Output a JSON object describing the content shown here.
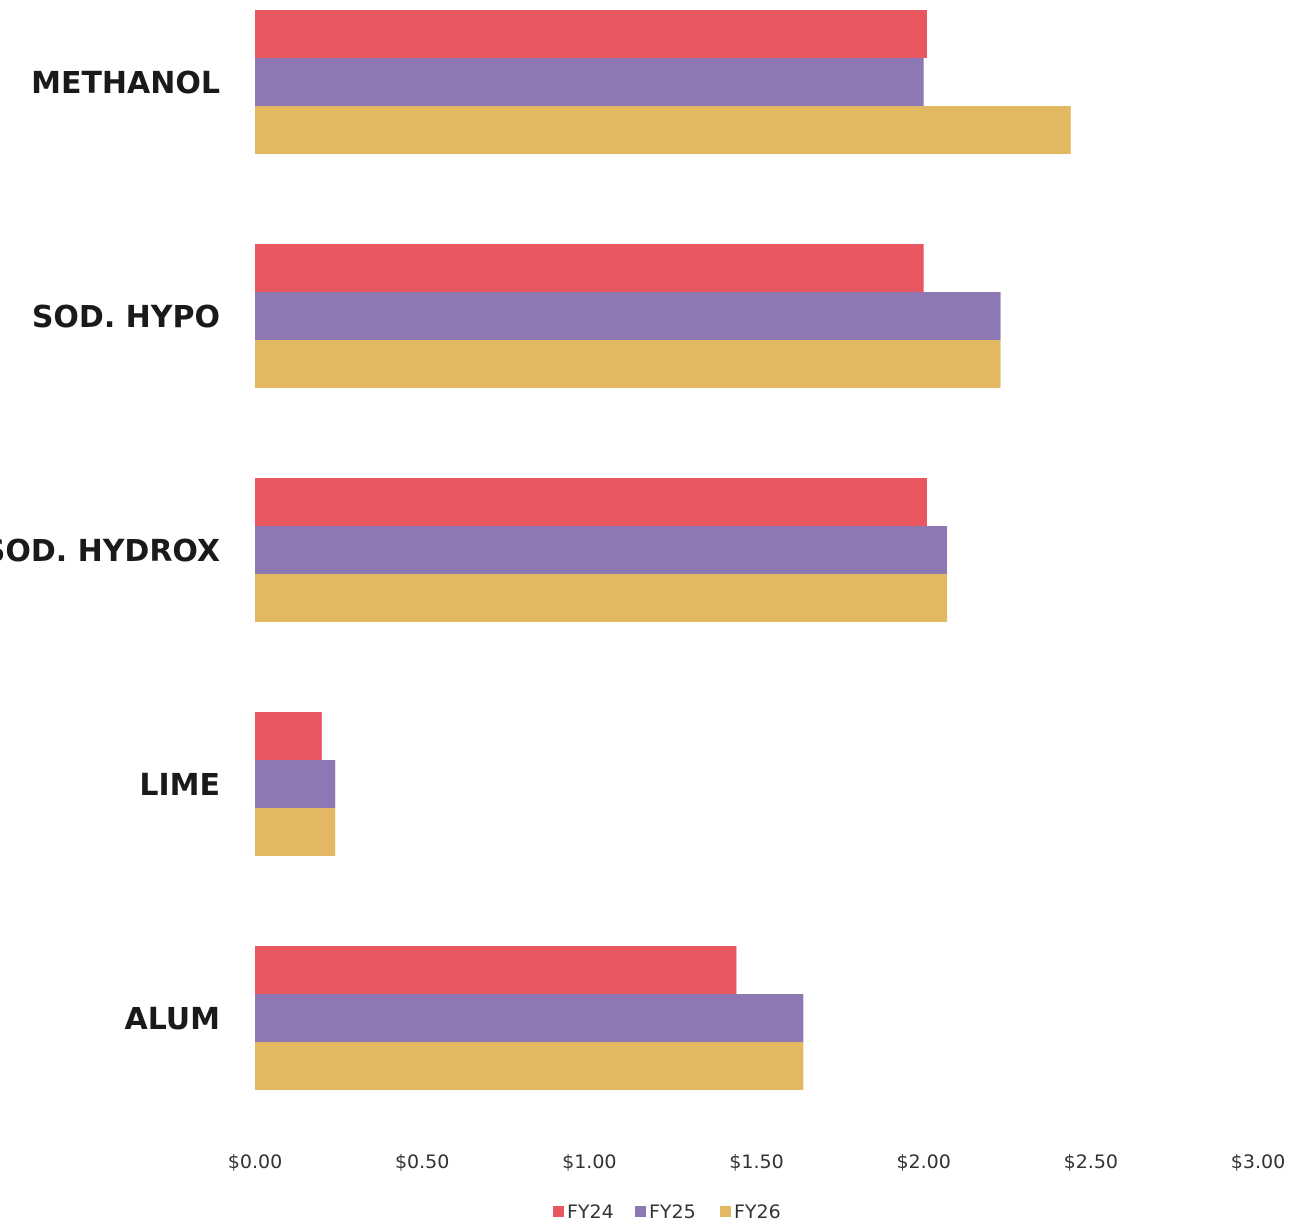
{
  "chart_data": {
    "type": "bar",
    "orientation": "horizontal",
    "categories": [
      "METHANOL",
      "SOD. HYPO",
      "SOD. HYDROX",
      "LIME",
      "ALUM"
    ],
    "series": [
      {
        "name": "FY24",
        "color": "#e8575f",
        "values": [
          2.01,
          2.0,
          2.01,
          0.2,
          1.44
        ]
      },
      {
        "name": "FY25",
        "color": "#8d78b3",
        "values": [
          2.0,
          2.23,
          2.07,
          0.24,
          1.64
        ]
      },
      {
        "name": "FY26",
        "color": "#e2b962",
        "values": [
          2.44,
          2.23,
          2.07,
          0.24,
          1.64
        ]
      }
    ],
    "xlim": [
      0,
      3
    ],
    "ticks": [
      0,
      0.5,
      1,
      1.5,
      2,
      2.5,
      3
    ],
    "tick_labels": [
      "$0.00",
      "$0.50",
      "$1.00",
      "$1.50",
      "$2.00",
      "$2.50",
      "$3.00"
    ],
    "grid": false,
    "legend_position": "bottom"
  }
}
